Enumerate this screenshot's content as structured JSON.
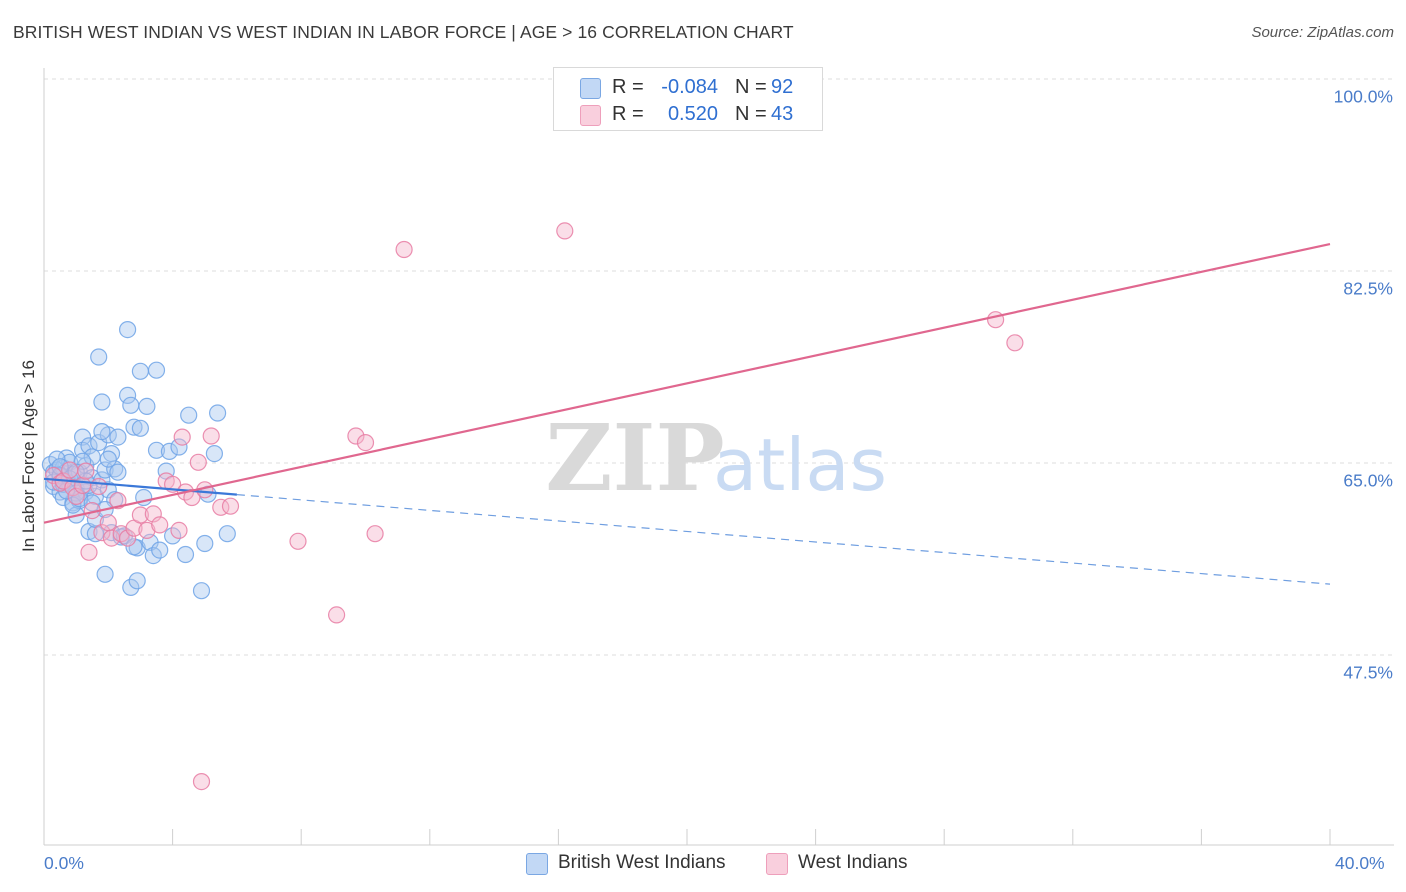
{
  "chart_data": {
    "type": "scatter",
    "title": "BRITISH WEST INDIAN VS WEST INDIAN IN LABOR FORCE | AGE > 16 CORRELATION CHART",
    "source": "Source: ZipAtlas.com",
    "xlabel": "",
    "ylabel": "In Labor Force | Age > 16",
    "xlim": [
      0,
      40
    ],
    "ylim": [
      30,
      100
    ],
    "x_tick_labels": [
      "0.0%",
      "40.0%"
    ],
    "y_ticks": [
      {
        "value": 100,
        "label": "100.0%"
      },
      {
        "value": 82.5,
        "label": "82.5%"
      },
      {
        "value": 65,
        "label": "65.0%"
      },
      {
        "value": 47.5,
        "label": "47.5%"
      }
    ],
    "grid": true,
    "watermark": "ZIPatlas",
    "stats": [
      {
        "r_label": "R =",
        "r_value": "-0.084",
        "n_label": "N =",
        "n_value": "92"
      },
      {
        "r_label": "R =",
        "r_value": "0.520",
        "n_label": "N =",
        "n_value": "43"
      }
    ],
    "series": [
      {
        "name": "British West Indians",
        "color": "#6fa3e6",
        "fill": "#a9c8f0",
        "trend": {
          "x_start": 0,
          "y_start": 65.2,
          "x_solid_end": 6.0,
          "x_end": 40,
          "y_end": 55.6
        },
        "points": [
          [
            0.2,
            66.5
          ],
          [
            0.3,
            65.8
          ],
          [
            0.3,
            64.5
          ],
          [
            0.4,
            66.0
          ],
          [
            0.5,
            65.4
          ],
          [
            0.5,
            64.0
          ],
          [
            0.6,
            66.2
          ],
          [
            0.6,
            63.5
          ],
          [
            0.7,
            65.0
          ],
          [
            0.7,
            67.1
          ],
          [
            0.8,
            64.8
          ],
          [
            0.8,
            66.7
          ],
          [
            0.9,
            65.6
          ],
          [
            0.9,
            63.0
          ],
          [
            1.0,
            64.3
          ],
          [
            1.0,
            61.9
          ],
          [
            1.1,
            65.8
          ],
          [
            1.1,
            63.2
          ],
          [
            1.2,
            69.0
          ],
          [
            1.2,
            67.8
          ],
          [
            1.3,
            64.0
          ],
          [
            1.3,
            66.4
          ],
          [
            1.4,
            68.2
          ],
          [
            1.4,
            60.4
          ],
          [
            1.5,
            65.3
          ],
          [
            1.5,
            67.2
          ],
          [
            1.6,
            63.6
          ],
          [
            1.6,
            60.2
          ],
          [
            1.7,
            76.3
          ],
          [
            1.7,
            68.5
          ],
          [
            1.8,
            65.1
          ],
          [
            1.8,
            72.2
          ],
          [
            1.9,
            66.0
          ],
          [
            1.9,
            56.5
          ],
          [
            2.0,
            69.2
          ],
          [
            2.0,
            64.2
          ],
          [
            2.1,
            67.5
          ],
          [
            2.1,
            60.3
          ],
          [
            2.2,
            66.1
          ],
          [
            2.3,
            65.8
          ],
          [
            2.4,
            59.9
          ],
          [
            2.5,
            60.0
          ],
          [
            2.6,
            78.8
          ],
          [
            2.6,
            72.8
          ],
          [
            2.7,
            71.9
          ],
          [
            2.7,
            55.3
          ],
          [
            2.8,
            69.9
          ],
          [
            2.9,
            58.9
          ],
          [
            2.9,
            55.9
          ],
          [
            3.0,
            75.0
          ],
          [
            3.0,
            69.8
          ],
          [
            3.1,
            63.5
          ],
          [
            3.2,
            71.8
          ],
          [
            3.3,
            59.4
          ],
          [
            3.4,
            58.2
          ],
          [
            3.5,
            75.1
          ],
          [
            3.5,
            67.8
          ],
          [
            3.6,
            58.7
          ],
          [
            3.8,
            65.9
          ],
          [
            3.9,
            67.7
          ],
          [
            4.0,
            60.0
          ],
          [
            4.2,
            68.1
          ],
          [
            4.4,
            58.3
          ],
          [
            4.5,
            71.0
          ],
          [
            4.9,
            55.0
          ],
          [
            5.0,
            59.3
          ],
          [
            5.1,
            63.8
          ],
          [
            5.3,
            67.5
          ],
          [
            5.4,
            71.2
          ],
          [
            5.7,
            60.2
          ],
          [
            0.3,
            64.9
          ],
          [
            0.5,
            65.5
          ],
          [
            0.6,
            64.7
          ],
          [
            0.8,
            65.2
          ],
          [
            1.0,
            63.9
          ],
          [
            1.2,
            66.8
          ],
          [
            1.4,
            64.6
          ],
          [
            0.4,
            67.0
          ],
          [
            0.9,
            62.8
          ],
          [
            1.6,
            61.5
          ],
          [
            2.2,
            63.3
          ],
          [
            1.1,
            63.4
          ],
          [
            0.7,
            64.1
          ],
          [
            1.3,
            65.0
          ],
          [
            1.5,
            63.0
          ],
          [
            2.0,
            67.0
          ],
          [
            1.8,
            69.5
          ],
          [
            0.5,
            66.3
          ],
          [
            1.9,
            62.4
          ],
          [
            2.3,
            69.0
          ],
          [
            2.8,
            59.0
          ],
          [
            1.0,
            65.8
          ]
        ]
      },
      {
        "name": "West Indians",
        "color": "#e87ca3",
        "fill": "#f4b5cc",
        "trend": {
          "x_start": 0,
          "y_start": 61.2,
          "x_end": 40,
          "y_end": 86.6
        },
        "points": [
          [
            0.3,
            65.5
          ],
          [
            0.5,
            64.8
          ],
          [
            0.6,
            65.0
          ],
          [
            0.8,
            66.0
          ],
          [
            0.9,
            64.4
          ],
          [
            1.0,
            63.6
          ],
          [
            1.2,
            64.6
          ],
          [
            1.3,
            65.9
          ],
          [
            1.5,
            62.3
          ],
          [
            1.7,
            64.5
          ],
          [
            1.8,
            60.3
          ],
          [
            2.0,
            61.2
          ],
          [
            2.1,
            59.8
          ],
          [
            2.3,
            63.2
          ],
          [
            2.4,
            60.2
          ],
          [
            2.6,
            59.8
          ],
          [
            2.8,
            60.7
          ],
          [
            3.0,
            61.9
          ],
          [
            3.2,
            60.5
          ],
          [
            3.4,
            62.0
          ],
          [
            3.6,
            61.0
          ],
          [
            3.8,
            65.0
          ],
          [
            4.0,
            64.7
          ],
          [
            4.2,
            60.5
          ],
          [
            4.3,
            69.0
          ],
          [
            4.4,
            64.0
          ],
          [
            4.6,
            63.5
          ],
          [
            4.8,
            66.7
          ],
          [
            5.0,
            64.2
          ],
          [
            5.2,
            69.1
          ],
          [
            5.5,
            62.6
          ],
          [
            5.8,
            62.7
          ],
          [
            7.9,
            59.5
          ],
          [
            9.1,
            52.8
          ],
          [
            9.7,
            69.1
          ],
          [
            10.0,
            68.5
          ],
          [
            10.3,
            60.2
          ],
          [
            11.2,
            86.1
          ],
          [
            16.2,
            87.8
          ],
          [
            29.6,
            79.7
          ],
          [
            30.2,
            77.6
          ],
          [
            4.9,
            37.6
          ],
          [
            1.4,
            58.5
          ]
        ]
      }
    ]
  }
}
